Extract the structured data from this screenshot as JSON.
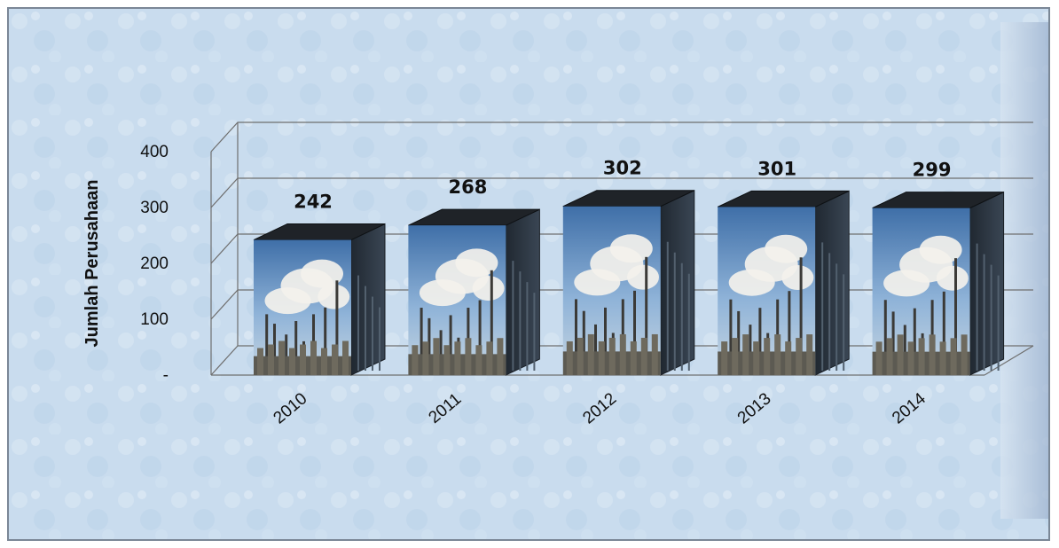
{
  "chart_data": {
    "type": "bar",
    "title": "",
    "xlabel": "",
    "ylabel": "Jumlah Perusahaan",
    "categories": [
      "2010",
      "2011",
      "2012",
      "2013",
      "2014"
    ],
    "values": [
      242,
      268,
      302,
      301,
      299
    ],
    "data_labels": [
      "242",
      "268",
      "302",
      "301",
      "299"
    ],
    "ylim": [
      0,
      400
    ],
    "y_ticks": [
      "-",
      "100",
      "200",
      "300",
      "400"
    ],
    "grid": true,
    "three_d": true,
    "bar_fill": "industrial refinery photo texture"
  },
  "colors": {
    "background": "#c9dcee",
    "grid": "#6f6f6f",
    "bar_top": "#1f2328",
    "bar_side": "#2c3440"
  }
}
